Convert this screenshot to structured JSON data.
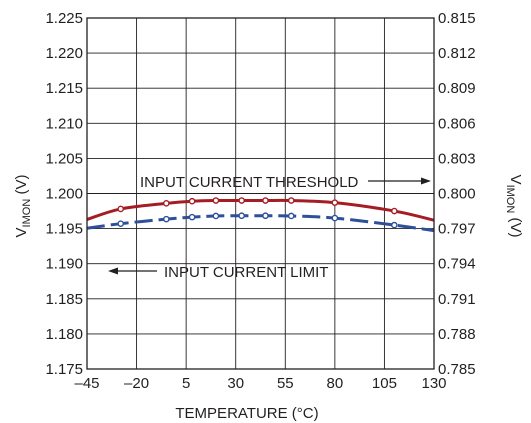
{
  "chart_data": {
    "type": "line",
    "title": "",
    "xlabel": "TEMPERATURE (°C)",
    "ylabel_left": {
      "main": "V",
      "sub": "IMON",
      "unit": " (V)"
    },
    "ylabel_right": {
      "main": "V",
      "sub": "IMON",
      "unit": " (V)"
    },
    "xlim": [
      -45,
      130
    ],
    "ylim_left": [
      1.175,
      1.225
    ],
    "ylim_right": [
      0.785,
      0.815
    ],
    "x_ticks": [
      -45,
      -20,
      5,
      30,
      55,
      80,
      105,
      130
    ],
    "x_tick_labels": [
      "–45",
      "–20",
      "5",
      "30",
      "55",
      "80",
      "105",
      "130"
    ],
    "y_left_ticks": [
      1.175,
      1.18,
      1.185,
      1.19,
      1.195,
      1.2,
      1.205,
      1.21,
      1.215,
      1.22,
      1.225
    ],
    "y_left_tick_labels": [
      "1.175",
      "1.180",
      "1.185",
      "1.190",
      "1.195",
      "1.200",
      "1.205",
      "1.210",
      "1.215",
      "1.220",
      "1.225"
    ],
    "y_right_ticks": [
      0.785,
      0.788,
      0.791,
      0.794,
      0.797,
      0.8,
      0.803,
      0.806,
      0.809,
      0.812,
      0.815
    ],
    "y_right_tick_labels": [
      "0.785",
      "0.788",
      "0.791",
      "0.794",
      "0.797",
      "0.800",
      "0.803",
      "0.806",
      "0.809",
      "0.812",
      "0.815"
    ],
    "grid": true,
    "series": [
      {
        "axis": "left",
        "color": "#a51d24",
        "dash": false,
        "x": [
          -45,
          -28,
          -5,
          8,
          20,
          33,
          45,
          58,
          80,
          110,
          130
        ],
        "y": [
          1.1963,
          1.1978,
          1.1986,
          1.1989,
          1.199,
          1.199,
          1.199,
          1.199,
          1.1987,
          1.1975,
          1.1962
        ],
        "markers_x": [
          -28,
          -5,
          8,
          20,
          33,
          45,
          58,
          80,
          110
        ],
        "markers_y": [
          1.1978,
          1.1986,
          1.1989,
          1.199,
          1.199,
          1.199,
          1.199,
          1.1987,
          1.1975
        ]
      },
      {
        "axis": "right",
        "color": "#2e4f9a",
        "dash": true,
        "x": [
          -45,
          -28,
          -5,
          8,
          20,
          33,
          45,
          58,
          80,
          110,
          130
        ],
        "y": [
          0.79703,
          0.79742,
          0.79781,
          0.79798,
          0.79808,
          0.7981,
          0.7981,
          0.79808,
          0.7979,
          0.7973,
          0.79683
        ],
        "markers_x": [
          -28,
          -5,
          8,
          20,
          33,
          45,
          58,
          80,
          110
        ],
        "markers_y": [
          0.79742,
          0.79781,
          0.79798,
          0.79808,
          0.7981,
          0.7981,
          0.79808,
          0.7979,
          0.7973
        ]
      }
    ],
    "annotations": [
      {
        "text": "INPUT CURRENT THRESHOLD",
        "arrow": "right"
      },
      {
        "text": "INPUT CURRENT LIMIT",
        "arrow": "left"
      }
    ]
  }
}
